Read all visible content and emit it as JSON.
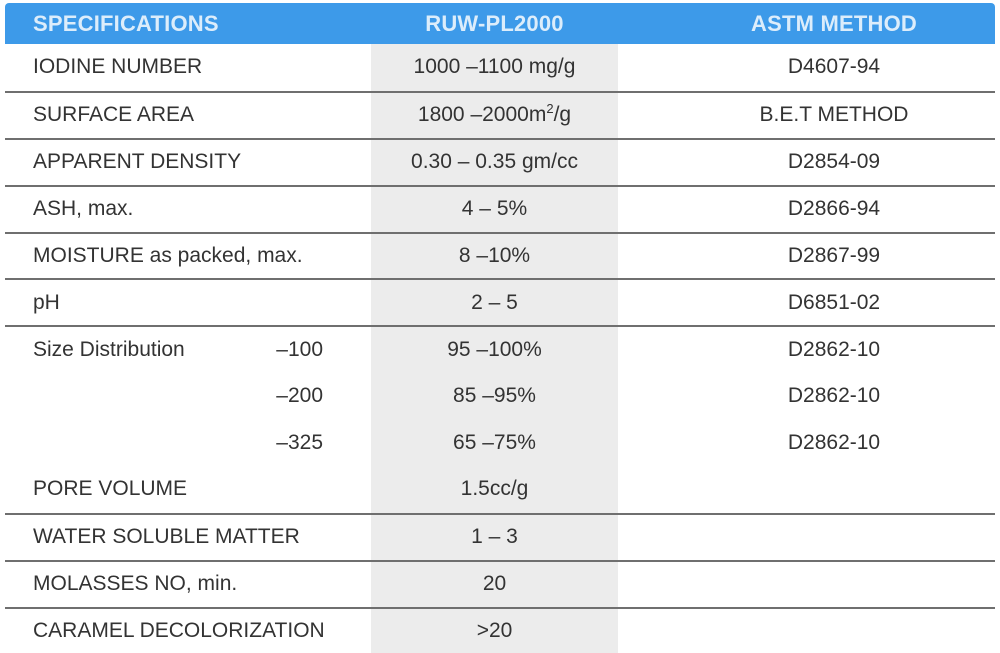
{
  "colors": {
    "header_bg": "#3D9AE9",
    "header_text": "#DCEDFB",
    "value_col_bg": "#ECECEC",
    "divider": "#6F6F6F",
    "text": "#333333"
  },
  "header": {
    "col_spec": "SPECIFICATIONS",
    "col_product": "RUW-PL2000",
    "col_method": "ASTM METHOD"
  },
  "table": {
    "rows": [
      {
        "spec": "IODINE NUMBER",
        "sub": "",
        "value": "1000 –1100 mg/g",
        "method": "D4607-94",
        "line": false
      },
      {
        "spec": "SURFACE AREA",
        "sub": "",
        "value_parts": [
          {
            "t": "1800 –2000m"
          },
          {
            "t": "2",
            "sup": true
          },
          {
            "t": "/g"
          }
        ],
        "method": "B.E.T METHOD",
        "line": true
      },
      {
        "spec": "APPARENT DENSITY",
        "sub": "",
        "value": "0.30 – 0.35 gm/cc",
        "method": "D2854-09",
        "line": true
      },
      {
        "spec": "ASH, max.",
        "sub": "",
        "value": "4 – 5%",
        "method": "D2866-94",
        "line": true
      },
      {
        "spec": "MOISTURE as packed, max.",
        "sub": "",
        "value": "8 –10%",
        "method": "D2867-99",
        "line": true
      },
      {
        "spec": "pH",
        "sub": "",
        "value": "2 – 5",
        "method": "D6851-02",
        "line": true
      },
      {
        "spec": "Size Distribution",
        "sub": "–100",
        "value": "95 –100%",
        "method": "D2862-10",
        "line": true
      },
      {
        "spec": "",
        "sub": "–200",
        "value": "85 –95%",
        "method": "D2862-10",
        "line": false
      },
      {
        "spec": "",
        "sub": "–325",
        "value": "65 –75%",
        "method": "D2862-10",
        "line": false
      },
      {
        "spec": "PORE VOLUME",
        "sub": "",
        "value": "1.5cc/g",
        "method": "",
        "line": false
      },
      {
        "spec": "WATER SOLUBLE MATTER",
        "sub": "",
        "value": "1 – 3",
        "method": "",
        "line": true
      },
      {
        "spec": "MOLASSES NO, min.",
        "sub": "",
        "value": "20",
        "method": "",
        "line": true
      },
      {
        "spec": "CARAMEL DECOLORIZATION",
        "sub": "",
        "value": ">20",
        "method": "",
        "line": true
      }
    ]
  }
}
